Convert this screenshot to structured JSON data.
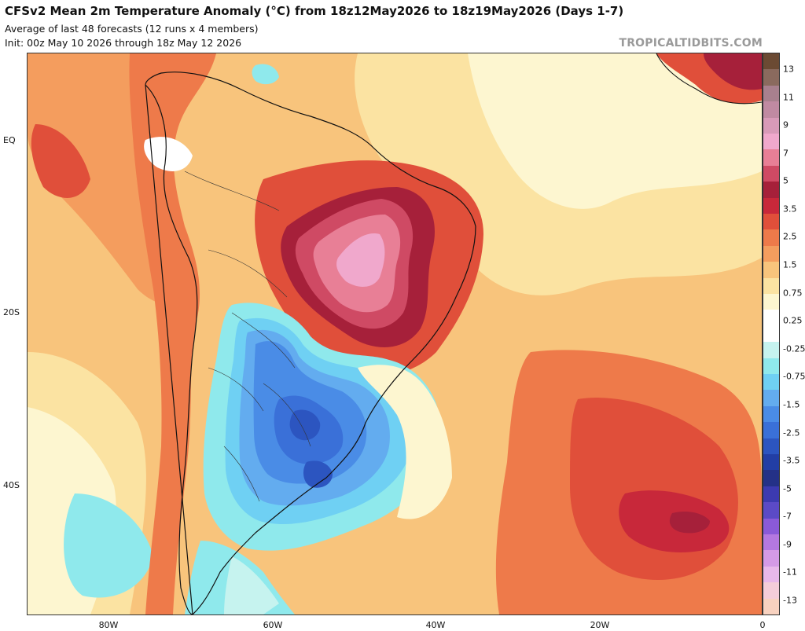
{
  "header": {
    "title": "CFSv2 Mean 2m Temperature Anomaly (°C) from 18z12May2026 to 18z19May2026 (Days 1-7)",
    "subtitle": "Average of last 48 forecasts (12 runs x 4 members)",
    "init": "Init: 00z May 10 2026 through 18z May 12 2026",
    "credit": "TROPICALTIDBITS.COM"
  },
  "map": {
    "lat_labels": [
      "EQ",
      "20S",
      "40S"
    ],
    "lon_labels": [
      "80W",
      "60W",
      "40W",
      "20W",
      "0"
    ]
  },
  "colorbar": {
    "labels": [
      "13",
      "11",
      "9",
      "7",
      "5",
      "3.5",
      "2.5",
      "1.5",
      "0.75",
      "0.25",
      "-0.25",
      "-0.75",
      "-1.5",
      "-2.5",
      "-3.5",
      "-5",
      "-7",
      "-9",
      "-11",
      "-13"
    ],
    "colors": [
      "#6b4a33",
      "#8a6a5e",
      "#a8808e",
      "#c08aa2",
      "#d89ab8",
      "#f0a8cc",
      "#e87f96",
      "#cf4a64",
      "#a6203a",
      "#c8283a",
      "#e04f3a",
      "#ee7a4a",
      "#f49d5e",
      "#f8c47c",
      "#fbe3a2",
      "#fdf6d0",
      "#ffffff",
      "#ffffff",
      "#c6f3ef",
      "#8fe9ec",
      "#6fd0f3",
      "#63acef",
      "#4a8ce6",
      "#3a70d8",
      "#2c55c0",
      "#223ea5",
      "#243187",
      "#3c3ab0",
      "#5b4ac6",
      "#8a5ad8",
      "#b478e0",
      "#d49ae6",
      "#e8b8ea",
      "#f4cdd9",
      "#f8d2c0"
    ]
  }
}
